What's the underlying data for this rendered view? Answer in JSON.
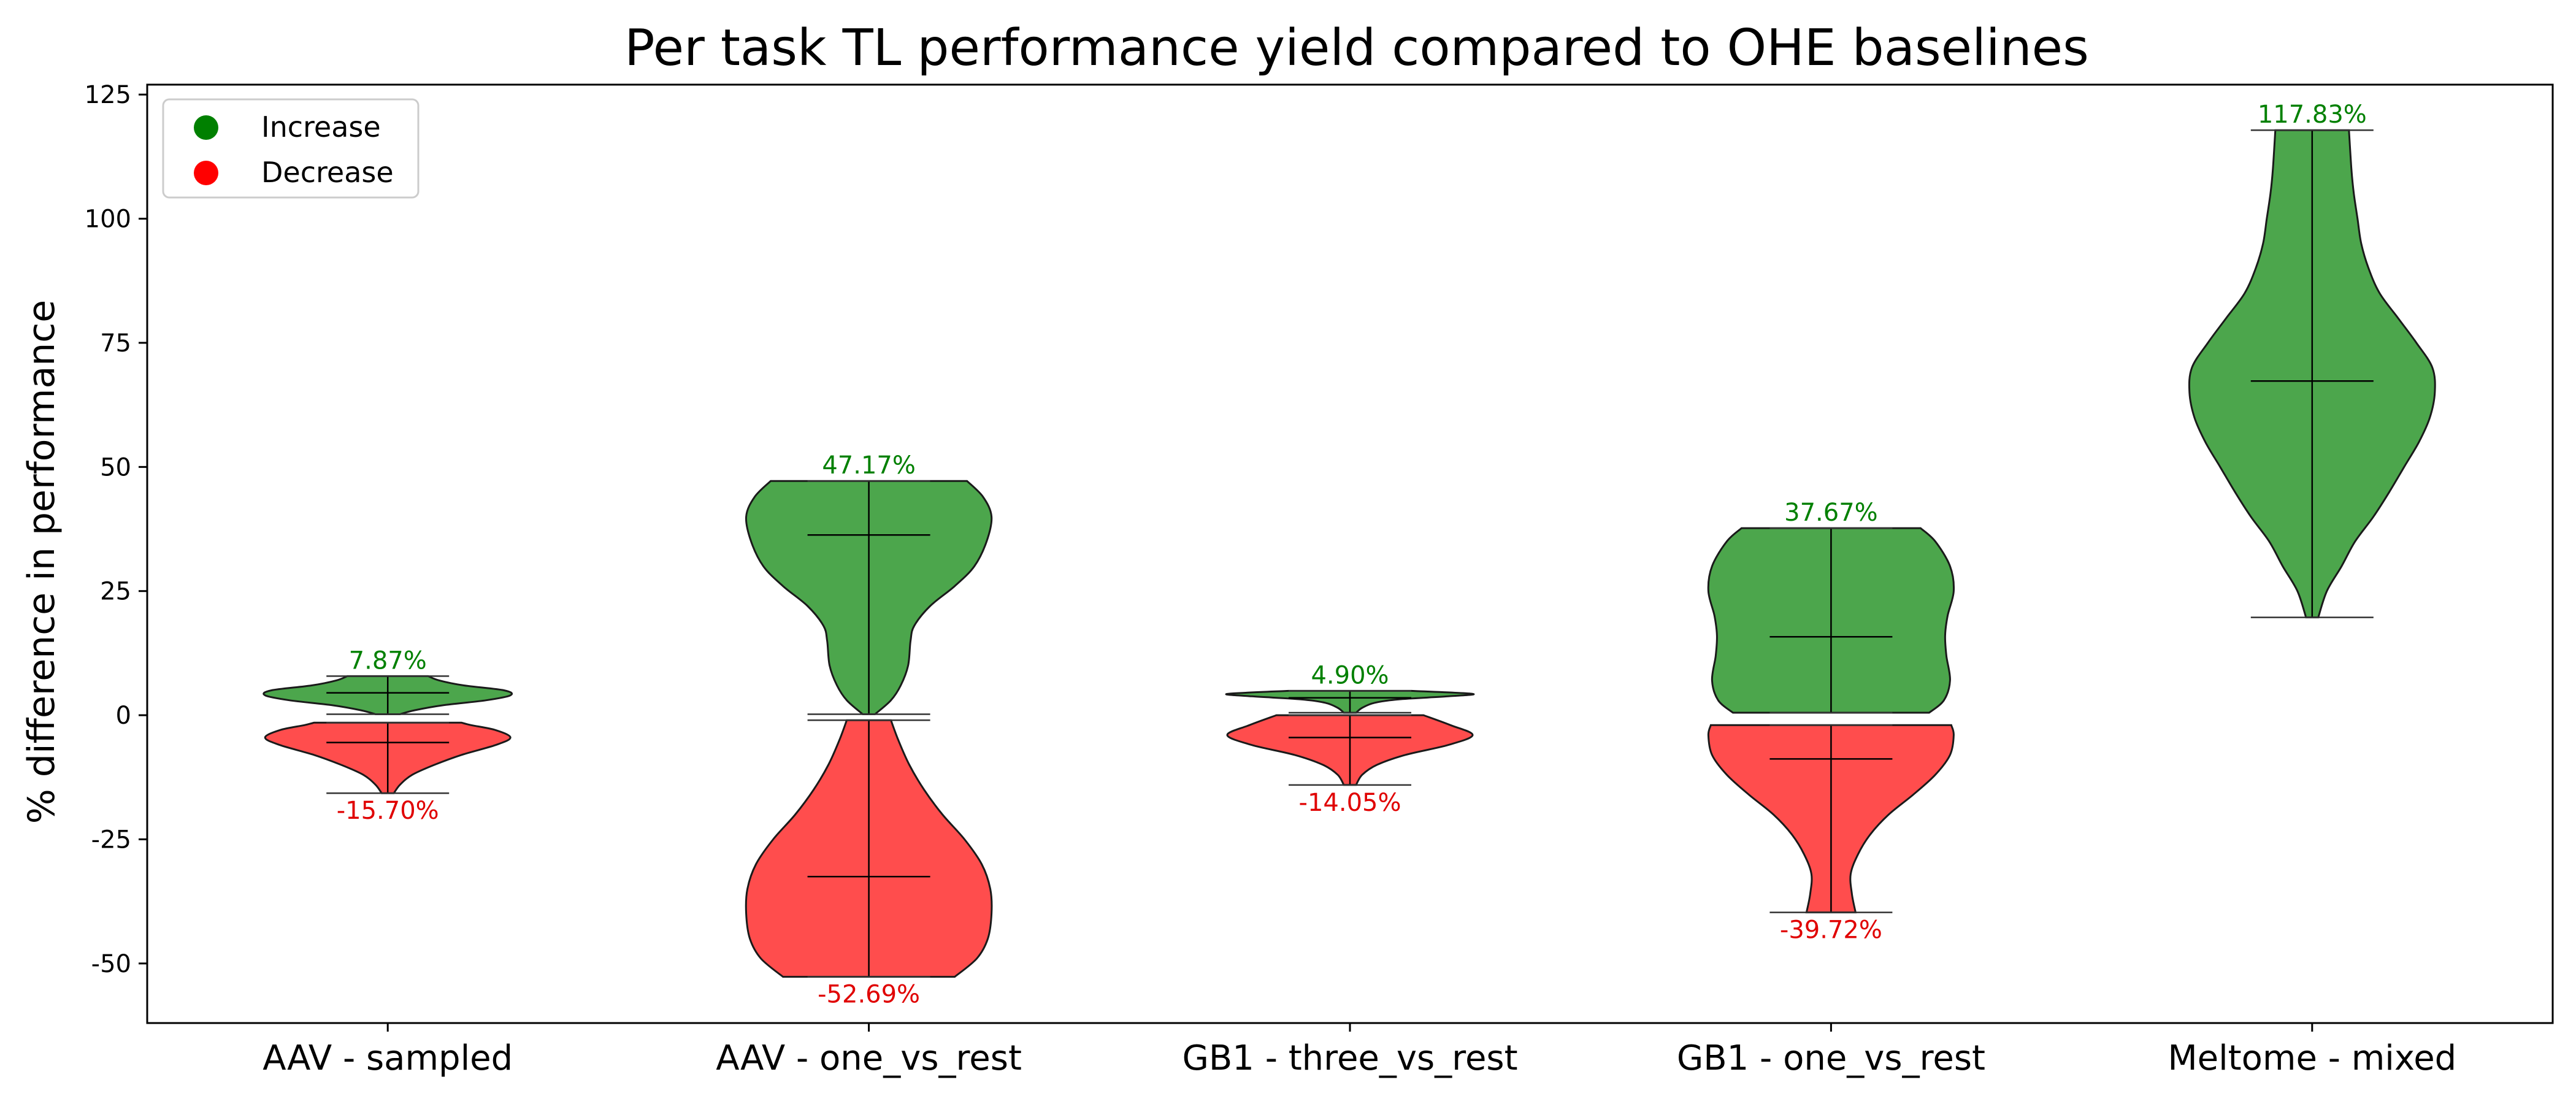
{
  "chart_data": {
    "type": "violin",
    "title": "Per task TL performance yield compared to OHE baselines",
    "xlabel": "",
    "ylabel": "% difference in performance",
    "ylim": [
      -62,
      127
    ],
    "yticks": [
      -50,
      -25,
      0,
      25,
      50,
      75,
      100,
      125
    ],
    "grid": false,
    "legend": {
      "placement": "top-left",
      "entries": [
        {
          "label": "Increase",
          "color": "#008000"
        },
        {
          "label": "Decrease",
          "color": "#ff0000"
        }
      ]
    },
    "colors": {
      "increase_fill": "#4ca64c",
      "decrease_fill": "#ff4d4d",
      "increase_label": "#008000",
      "decrease_label": "#e00000"
    },
    "categories": [
      "AAV - sampled",
      "AAV - one_vs_rest",
      "GB1 - three_vs_rest",
      "GB1 - one_vs_rest",
      "Meltome - mixed"
    ],
    "violins": [
      {
        "category": "AAV - sampled",
        "increase": {
          "min": 0.2,
          "max": 7.87,
          "mean": 4.5,
          "max_label": "7.87%",
          "profile": [
            [
              0.2,
              0.1
            ],
            [
              1.0,
              0.22
            ],
            [
              2.0,
              0.45
            ],
            [
              3.0,
              0.8
            ],
            [
              4.0,
              1.0
            ],
            [
              5.0,
              0.95
            ],
            [
              6.0,
              0.62
            ],
            [
              7.0,
              0.42
            ],
            [
              7.87,
              0.33
            ]
          ]
        },
        "decrease": {
          "min": -15.7,
          "max": -1.5,
          "mean": -5.5,
          "min_label": "-15.70%",
          "profile": [
            [
              -15.7,
              0.05
            ],
            [
              -14.0,
              0.1
            ],
            [
              -12.0,
              0.2
            ],
            [
              -10.0,
              0.38
            ],
            [
              -8.0,
              0.6
            ],
            [
              -6.0,
              0.88
            ],
            [
              -4.5,
              1.0
            ],
            [
              -3.0,
              0.88
            ],
            [
              -2.0,
              0.68
            ],
            [
              -1.5,
              0.6
            ]
          ]
        }
      },
      {
        "category": "AAV - one_vs_rest",
        "increase": {
          "min": 0.2,
          "max": 47.17,
          "mean": 36.3,
          "max_label": "47.17%",
          "profile": [
            [
              0.2,
              0.05
            ],
            [
              3,
              0.18
            ],
            [
              6,
              0.26
            ],
            [
              10,
              0.32
            ],
            [
              15,
              0.34
            ],
            [
              18,
              0.37
            ],
            [
              22,
              0.5
            ],
            [
              26,
              0.7
            ],
            [
              30,
              0.86
            ],
            [
              35,
              0.96
            ],
            [
              40,
              1.0
            ],
            [
              44,
              0.93
            ],
            [
              47.17,
              0.8
            ]
          ]
        },
        "decrease": {
          "min": -52.69,
          "max": -1.0,
          "mean": -32.5,
          "min_label": "-52.69%",
          "profile": [
            [
              -52.69,
              0.7
            ],
            [
              -49,
              0.88
            ],
            [
              -45,
              0.97
            ],
            [
              -40,
              1.0
            ],
            [
              -35,
              0.99
            ],
            [
              -30,
              0.92
            ],
            [
              -25,
              0.78
            ],
            [
              -20,
              0.6
            ],
            [
              -15,
              0.45
            ],
            [
              -10,
              0.33
            ],
            [
              -5,
              0.24
            ],
            [
              -1,
              0.18
            ]
          ]
        }
      },
      {
        "category": "GB1 - three_vs_rest",
        "increase": {
          "min": 0.5,
          "max": 4.9,
          "mean": 3.5,
          "max_label": "4.90%",
          "profile": [
            [
              0.5,
              0.05
            ],
            [
              1.5,
              0.1
            ],
            [
              2.5,
              0.2
            ],
            [
              3.2,
              0.4
            ],
            [
              3.8,
              0.8
            ],
            [
              4.3,
              1.0
            ],
            [
              4.9,
              0.5
            ]
          ]
        },
        "decrease": {
          "min": -14.05,
          "max": 0.0,
          "mean": -4.5,
          "min_label": "-14.05%",
          "profile": [
            [
              -14.05,
              0.05
            ],
            [
              -12,
              0.1
            ],
            [
              -10,
              0.22
            ],
            [
              -8,
              0.45
            ],
            [
              -6,
              0.8
            ],
            [
              -4,
              1.0
            ],
            [
              -2,
              0.82
            ],
            [
              0,
              0.6
            ]
          ]
        }
      },
      {
        "category": "GB1 - one_vs_rest",
        "increase": {
          "min": 0.5,
          "max": 37.67,
          "mean": 15.8,
          "max_label": "37.67%",
          "profile": [
            [
              0.5,
              0.8
            ],
            [
              3,
              0.92
            ],
            [
              7,
              0.97
            ],
            [
              12,
              0.94
            ],
            [
              16,
              0.93
            ],
            [
              20,
              0.95
            ],
            [
              25,
              1.0
            ],
            [
              30,
              0.97
            ],
            [
              35,
              0.85
            ],
            [
              37.67,
              0.73
            ]
          ]
        },
        "decrease": {
          "min": -39.72,
          "max": -2.0,
          "mean": -8.8,
          "min_label": "-39.72%",
          "profile": [
            [
              -39.72,
              0.2
            ],
            [
              -36,
              0.17
            ],
            [
              -32,
              0.16
            ],
            [
              -28,
              0.22
            ],
            [
              -24,
              0.32
            ],
            [
              -20,
              0.47
            ],
            [
              -16,
              0.67
            ],
            [
              -12,
              0.85
            ],
            [
              -8,
              0.97
            ],
            [
              -4,
              1.0
            ],
            [
              -2,
              0.98
            ]
          ]
        }
      },
      {
        "category": "Meltome - mixed",
        "increase": {
          "min": 19.7,
          "max": 117.83,
          "mean": 67.3,
          "max_label": "117.83%",
          "profile": [
            [
              19.7,
              0.05
            ],
            [
              25,
              0.12
            ],
            [
              30,
              0.24
            ],
            [
              35,
              0.35
            ],
            [
              40,
              0.5
            ],
            [
              45,
              0.63
            ],
            [
              50,
              0.75
            ],
            [
              55,
              0.87
            ],
            [
              60,
              0.96
            ],
            [
              65,
              1.0
            ],
            [
              70,
              0.98
            ],
            [
              75,
              0.85
            ],
            [
              80,
              0.7
            ],
            [
              85,
              0.55
            ],
            [
              90,
              0.46
            ],
            [
              95,
              0.4
            ],
            [
              100,
              0.37
            ],
            [
              105,
              0.34
            ],
            [
              110,
              0.32
            ],
            [
              117.83,
              0.3
            ]
          ]
        },
        "decrease": null
      }
    ]
  }
}
